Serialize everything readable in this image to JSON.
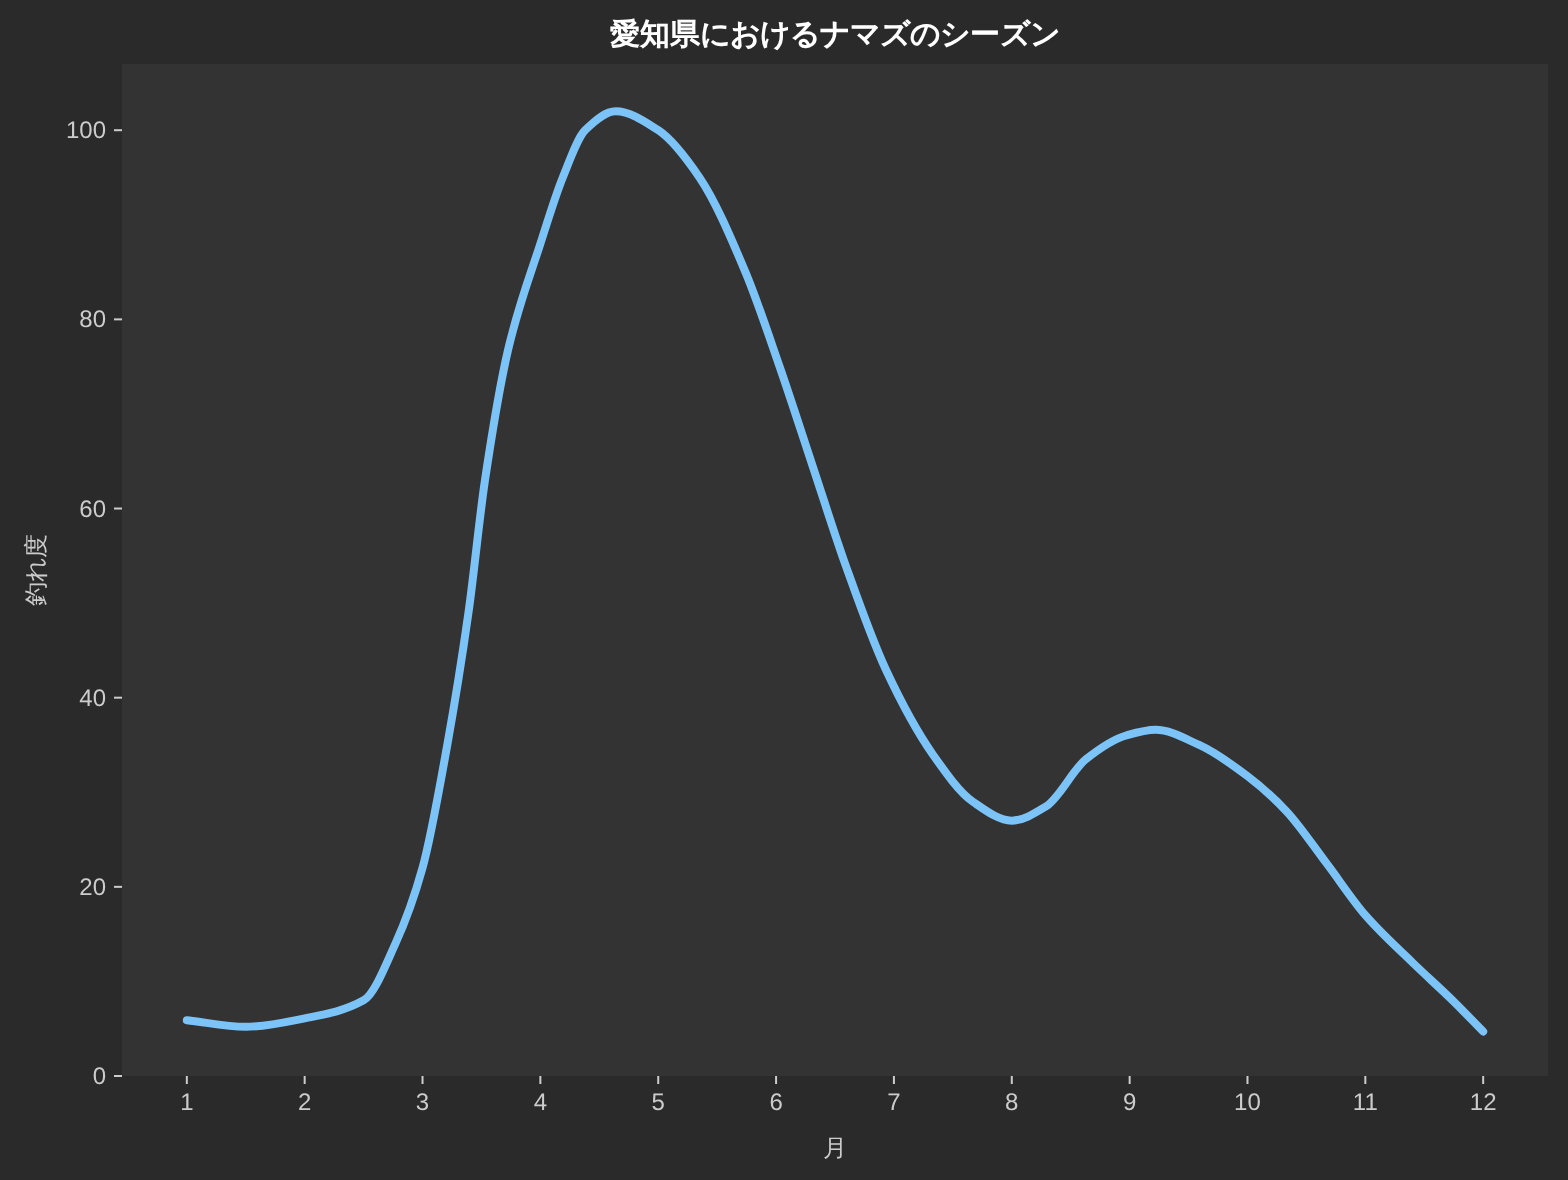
{
  "chart_data": {
    "type": "line",
    "title": "愛知県におけるナマズのシーズン",
    "xlabel": "月",
    "ylabel": "釣れ度",
    "x": [
      1,
      1.5,
      2,
      2.5,
      2.77,
      3,
      3.21,
      3.39,
      3.53,
      3.73,
      4,
      4.19,
      4.38,
      4.64,
      5,
      5.35,
      5.74,
      6.03,
      6.31,
      6.59,
      6.93,
      7.33,
      7.67,
      8,
      8.29,
      8.63,
      8.97,
      9.22,
      9.59,
      10,
      10.33,
      10.67,
      11,
      11.4,
      11.74,
      12
    ],
    "values": [
      5.9,
      5.2,
      6.1,
      8,
      14,
      22,
      35,
      49,
      63,
      77,
      88,
      95,
      100,
      102,
      100,
      95,
      85,
      75,
      64.5,
      54,
      43,
      34,
      29,
      27,
      28.5,
      33.5,
      36,
      36.6,
      35,
      31.7,
      28,
      22.5,
      17,
      12,
      8,
      4.7
    ],
    "color": "#7cc4f8",
    "xlim": [
      0.45,
      12.55
    ],
    "ylim": [
      0,
      107
    ],
    "xticks": [
      1,
      2,
      3,
      4,
      5,
      6,
      7,
      8,
      9,
      10,
      11,
      12
    ],
    "yticks": [
      0,
      20,
      40,
      60,
      80,
      100
    ]
  }
}
